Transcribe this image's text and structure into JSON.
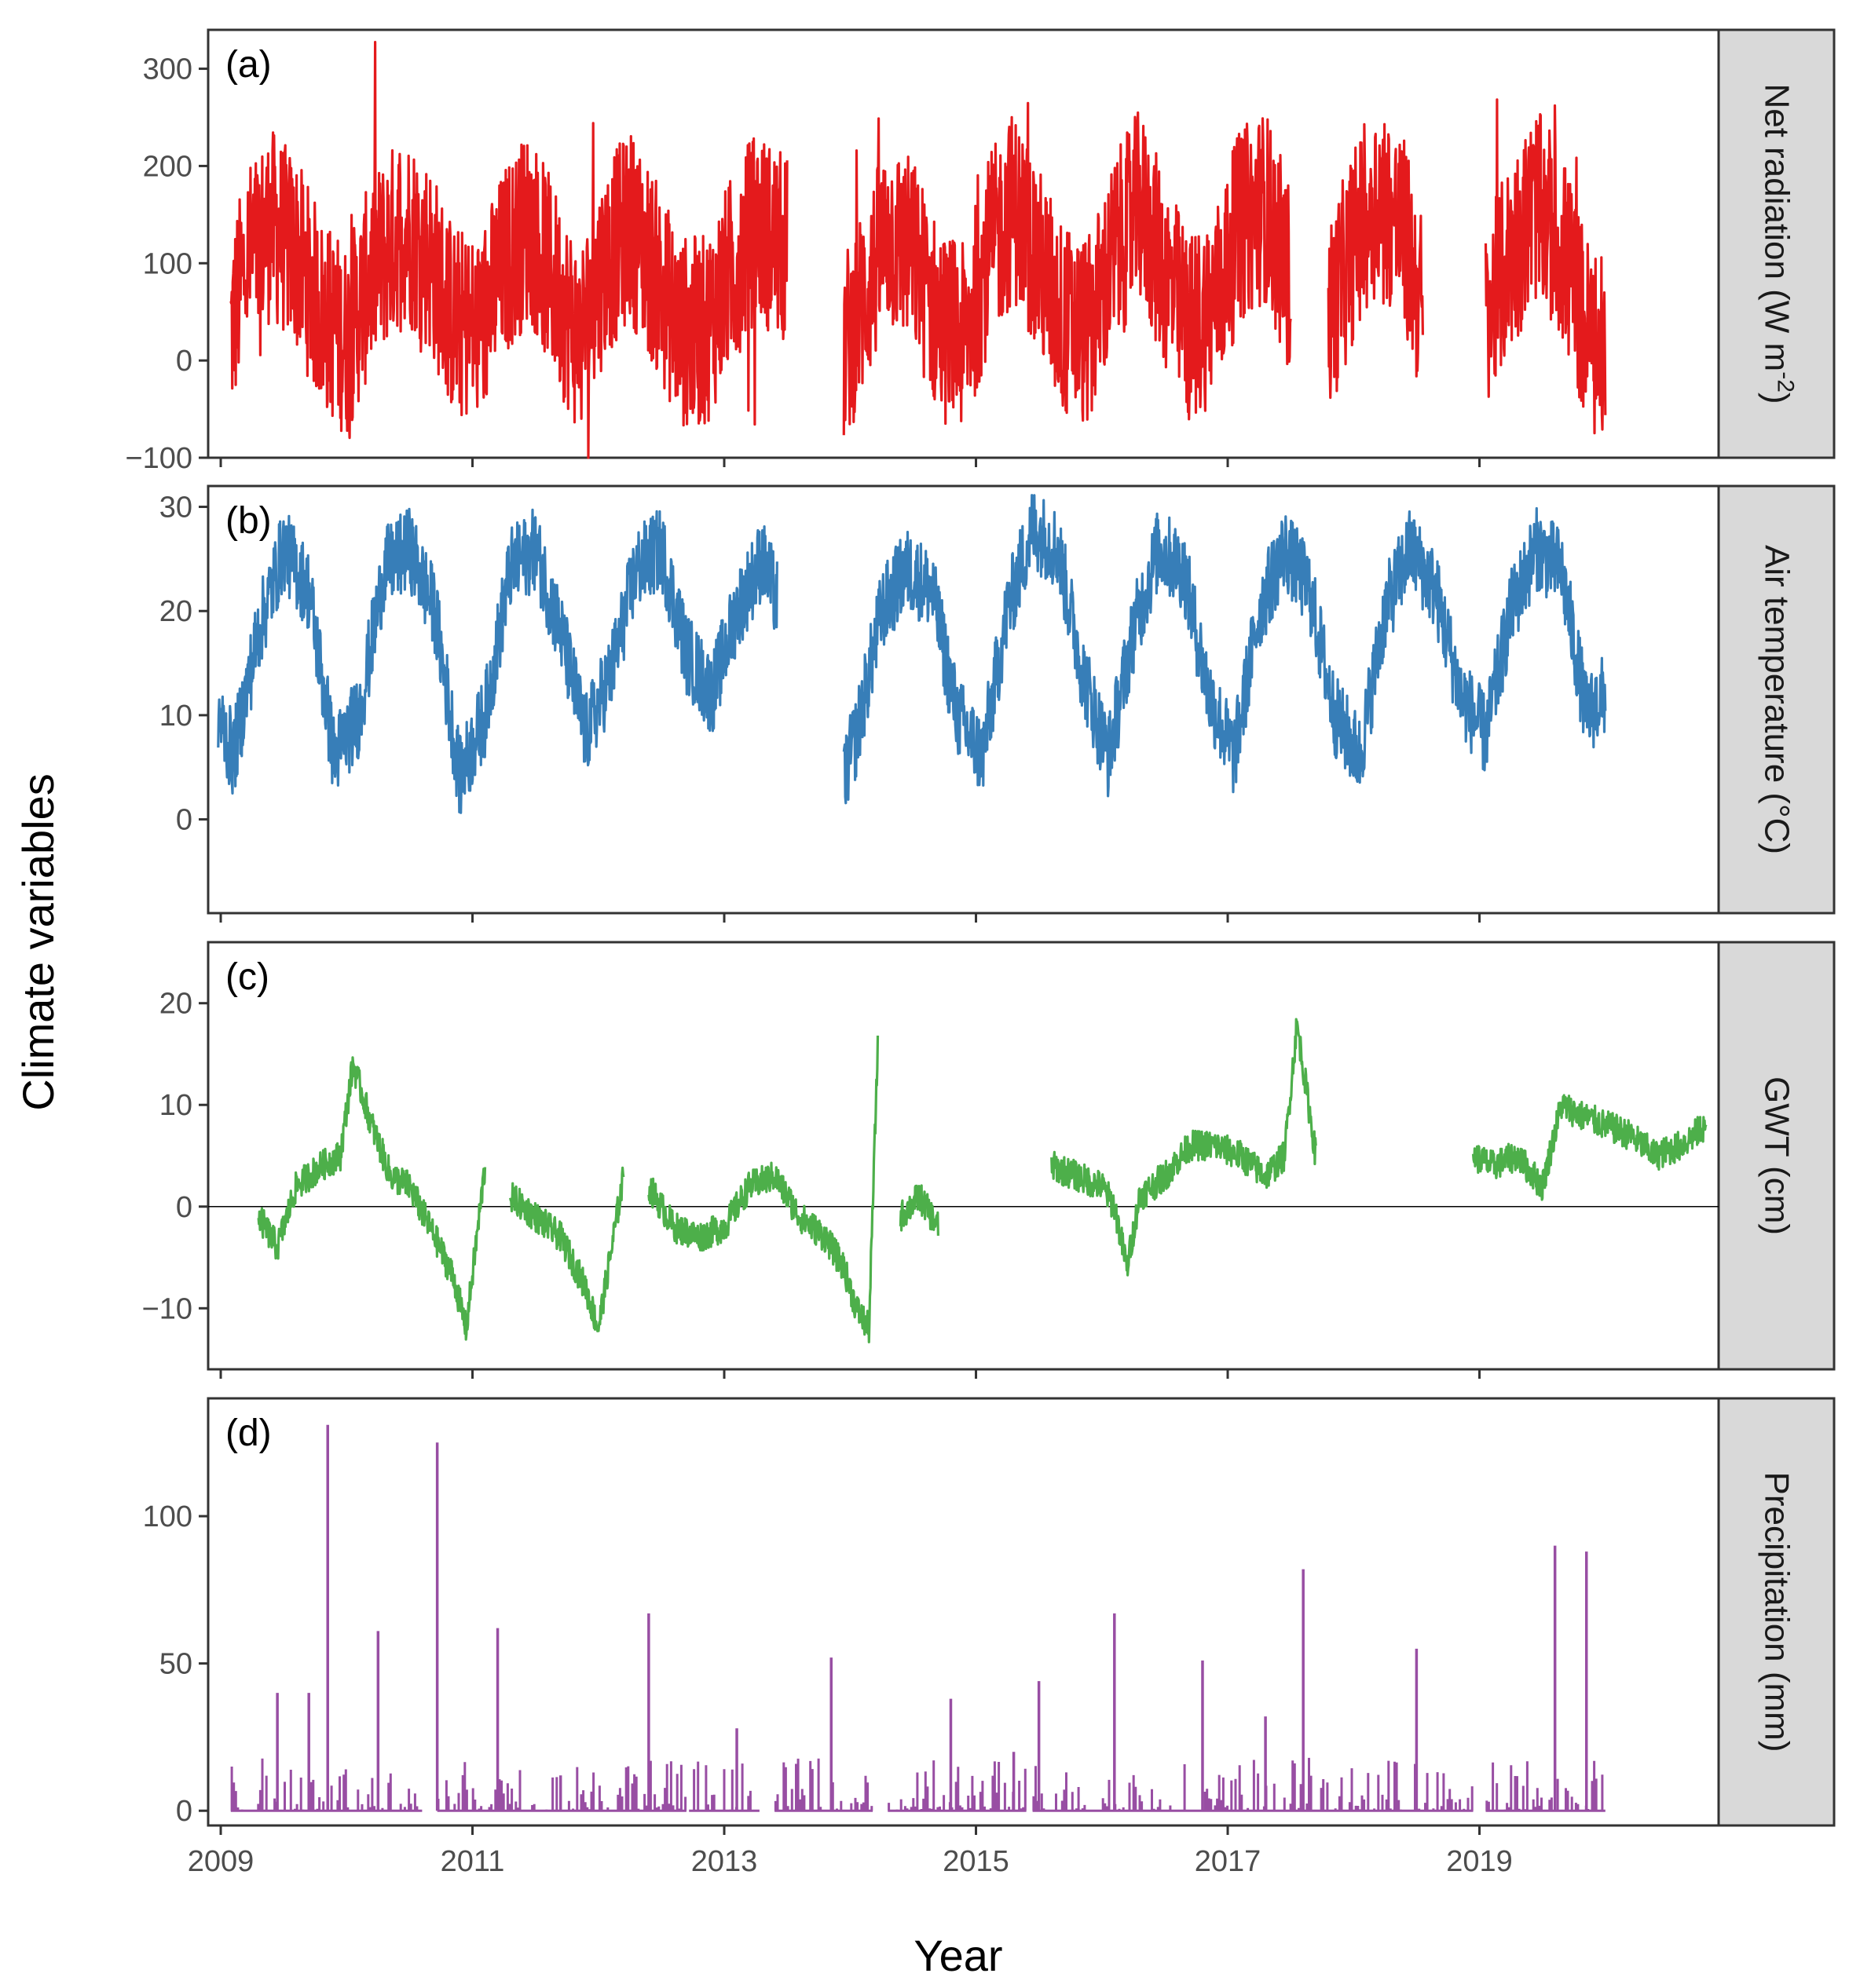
{
  "figure": {
    "ylabel": "Climate variables",
    "xlabel": "Year",
    "x_ticks": [
      "2009",
      "2011",
      "2013",
      "2015",
      "2017",
      "2019"
    ]
  },
  "chart_data": [
    {
      "type": "line",
      "panel": "(a)",
      "strip": "Net radiation (W m",
      "strip_sup": "-2",
      "strip_end": ")",
      "color": "#e41a1c",
      "x_range": [
        2008.9,
        2020.9
      ],
      "ylim": [
        -100,
        340
      ],
      "y_ticks": [
        "300",
        "200",
        "100",
        "0",
        "−100"
      ],
      "y_tick_values": [
        300,
        200,
        100,
        0,
        -100
      ],
      "x_ticks": [
        "2009",
        "2011",
        "2013",
        "2015",
        "2017",
        "2019"
      ],
      "x_tick_values": [
        2009,
        2011,
        2013,
        2015,
        2017,
        2019
      ],
      "segments": [
        {
          "x": [
            2009.08,
            2009.2,
            2009.4,
            2009.6,
            2009.8,
            2010.0,
            2010.2,
            2010.45,
            2010.65,
            2010.85,
            2011.05,
            2011.25,
            2011.45,
            2011.65,
            2011.85,
            2012.05,
            2012.25,
            2012.45,
            2012.65,
            2012.85,
            2013.05,
            2013.25,
            2013.5
          ],
          "y": [
            30,
            100,
            140,
            110,
            50,
            20,
            90,
            140,
            110,
            40,
            30,
            100,
            140,
            80,
            20,
            100,
            140,
            90,
            30,
            30,
            90,
            140,
            110
          ]
        },
        {
          "x": [
            2013.95,
            2014.1,
            2014.3,
            2014.5,
            2014.7,
            2014.9,
            2015.1,
            2015.3,
            2015.5,
            2015.7,
            2015.9,
            2016.1,
            2016.3,
            2016.5,
            2016.7,
            2016.9,
            2017.1,
            2017.3,
            2017.5
          ],
          "y": [
            10,
            60,
            130,
            110,
            40,
            20,
            110,
            160,
            100,
            40,
            30,
            110,
            160,
            90,
            30,
            60,
            140,
            160,
            80
          ]
        },
        {
          "x": [
            2017.8,
            2018.0,
            2018.2,
            2018.4,
            2018.55
          ],
          "y": [
            40,
            120,
            170,
            130,
            50
          ]
        },
        {
          "x": [
            2019.05,
            2019.25,
            2019.45,
            2019.65,
            2019.85,
            2020.0
          ],
          "y": [
            40,
            110,
            160,
            120,
            30,
            0
          ]
        }
      ],
      "amplitude": 100
    },
    {
      "type": "line",
      "panel": "(b)",
      "strip": "Air temperature (°C)",
      "color": "#377eb8",
      "x_range": [
        2008.9,
        2020.9
      ],
      "ylim": [
        -9,
        32
      ],
      "y_ticks": [
        "30",
        "20",
        "10",
        "0"
      ],
      "y_tick_values": [
        30,
        20,
        10,
        0
      ],
      "x_ticks": [
        "2009",
        "2011",
        "2013",
        "2015",
        "2017",
        "2019"
      ],
      "x_tick_values": [
        2009,
        2011,
        2013,
        2015,
        2017,
        2019
      ],
      "segments": [
        {
          "x": [
            2008.98,
            2009.1,
            2009.3,
            2009.5,
            2009.7,
            2009.9,
            2010.1,
            2010.3,
            2010.5,
            2010.7,
            2010.9,
            2011.1,
            2011.3,
            2011.5,
            2011.7,
            2011.9,
            2012.1,
            2012.3,
            2012.5,
            2012.7,
            2012.9,
            2013.1,
            2013.3,
            2013.42
          ],
          "y": [
            10,
            6,
            18,
            26,
            22,
            6,
            10,
            24,
            26,
            20,
            4,
            10,
            24,
            26,
            18,
            8,
            14,
            24,
            26,
            16,
            12,
            20,
            25,
            21
          ]
        },
        {
          "x": [
            2013.95,
            2014.05,
            2014.25,
            2014.45,
            2014.65,
            2014.85,
            2015.05,
            2015.25,
            2015.45,
            2015.65,
            2015.85,
            2016.05,
            2016.25,
            2016.45,
            2016.65,
            2016.85,
            2017.05,
            2017.25,
            2017.45,
            2017.65,
            2017.85,
            2018.05,
            2018.25,
            2018.45,
            2018.65,
            2018.85,
            2019.05,
            2019.25,
            2019.45,
            2019.65,
            2019.85,
            2020.0
          ],
          "y": [
            4,
            8,
            20,
            24,
            22,
            10,
            6,
            20,
            28,
            26,
            14,
            6,
            18,
            26,
            24,
            12,
            6,
            20,
            26,
            22,
            10,
            6,
            20,
            26,
            22,
            12,
            8,
            20,
            26,
            24,
            10,
            12
          ]
        }
      ],
      "amplitude": 4
    },
    {
      "type": "line",
      "panel": "(c)",
      "strip": "GWT (cm)",
      "color": "#4daf4a",
      "x_range": [
        2008.9,
        2020.9
      ],
      "ylim": [
        -16,
        26
      ],
      "y_ticks": [
        "20",
        "10",
        "0",
        "−10"
      ],
      "y_tick_values": [
        20,
        10,
        0,
        -10
      ],
      "x_ticks": [
        "2009",
        "2011",
        "2013",
        "2015",
        "2017",
        "2019"
      ],
      "x_tick_values": [
        2009,
        2011,
        2013,
        2015,
        2017,
        2019
      ],
      "hline": 0,
      "segments": [
        {
          "x": [
            2009.3,
            2009.45,
            2009.6,
            2009.8,
            2009.95,
            2010.05,
            2010.2,
            2010.35,
            2010.5,
            2010.7,
            2010.85,
            2010.95,
            2011.1
          ],
          "y": [
            -1,
            -4,
            2,
            4,
            5,
            14,
            8,
            3,
            2,
            -3,
            -7,
            -12,
            4
          ]
        },
        {
          "x": [
            2011.3,
            2011.5,
            2011.7,
            2011.9,
            2012.0,
            2012.2
          ],
          "y": [
            1,
            -1,
            -3,
            -8,
            -12,
            3
          ]
        },
        {
          "x": [
            2012.4,
            2012.6,
            2012.8,
            2013.0,
            2013.2,
            2013.4,
            2013.6,
            2013.8,
            2013.95,
            2014.05,
            2014.15,
            2014.22
          ],
          "y": [
            2,
            -2,
            -3,
            -2,
            2,
            3,
            -1,
            -3,
            -6,
            -10,
            -12,
            16
          ]
        },
        {
          "x": [
            2014.4,
            2014.55,
            2014.7
          ],
          "y": [
            -1,
            1,
            -2
          ]
        },
        {
          "x": [
            2015.6,
            2015.8,
            2016.0,
            2016.1,
            2016.2,
            2016.3,
            2016.5,
            2016.7,
            2016.9,
            2017.1,
            2017.3,
            2017.45,
            2017.55,
            2017.7
          ],
          "y": [
            4,
            3,
            2,
            0,
            -6,
            1,
            3,
            6,
            6,
            5,
            3,
            5,
            18,
            5
          ]
        },
        {
          "x": [
            2018.95,
            2019.1,
            2019.3,
            2019.5,
            2019.65,
            2019.8,
            2020.0,
            2020.2,
            2020.4,
            2020.6,
            2020.8
          ],
          "y": [
            5,
            4,
            5,
            2,
            10,
            9,
            8,
            7,
            5,
            6,
            8
          ]
        }
      ],
      "amplitude": 1.5
    },
    {
      "type": "bar",
      "panel": "(d)",
      "strip": "Precipitation (mm)",
      "color": "#984ea3",
      "x_range": [
        2008.9,
        2020.9
      ],
      "ylim": [
        -5,
        140
      ],
      "y_ticks": [
        "100",
        "50",
        "0"
      ],
      "y_tick_values": [
        100,
        50,
        0
      ],
      "x_ticks": [
        "2009",
        "2011",
        "2013",
        "2015",
        "2017",
        "2019"
      ],
      "x_tick_values": [
        2009,
        2011,
        2013,
        2015,
        2017,
        2019
      ],
      "active_ranges": [
        [
          2009.08,
          2010.6
        ],
        [
          2010.72,
          2012.7
        ],
        [
          2012.72,
          2013.28
        ],
        [
          2013.4,
          2014.18
        ],
        [
          2014.3,
          2015.4
        ],
        [
          2015.45,
          2018.95
        ],
        [
          2019.05,
          2020.0
        ]
      ],
      "typical_max": 18,
      "peaks": [
        {
          "x": 2009.85,
          "v": 131
        },
        {
          "x": 2010.25,
          "v": 61
        },
        {
          "x": 2010.72,
          "v": 125
        },
        {
          "x": 2011.2,
          "v": 62
        },
        {
          "x": 2012.4,
          "v": 67
        },
        {
          "x": 2013.1,
          "v": 28
        },
        {
          "x": 2013.85,
          "v": 52
        },
        {
          "x": 2014.8,
          "v": 38
        },
        {
          "x": 2015.5,
          "v": 44
        },
        {
          "x": 2016.1,
          "v": 67
        },
        {
          "x": 2016.8,
          "v": 51
        },
        {
          "x": 2017.6,
          "v": 82
        },
        {
          "x": 2018.5,
          "v": 55
        },
        {
          "x": 2019.6,
          "v": 90
        },
        {
          "x": 2019.85,
          "v": 88
        },
        {
          "x": 2009.45,
          "v": 40
        },
        {
          "x": 2009.7,
          "v": 40
        },
        {
          "x": 2011.7,
          "v": 12
        },
        {
          "x": 2015.3,
          "v": 20
        },
        {
          "x": 2017.3,
          "v": 32
        }
      ]
    }
  ]
}
